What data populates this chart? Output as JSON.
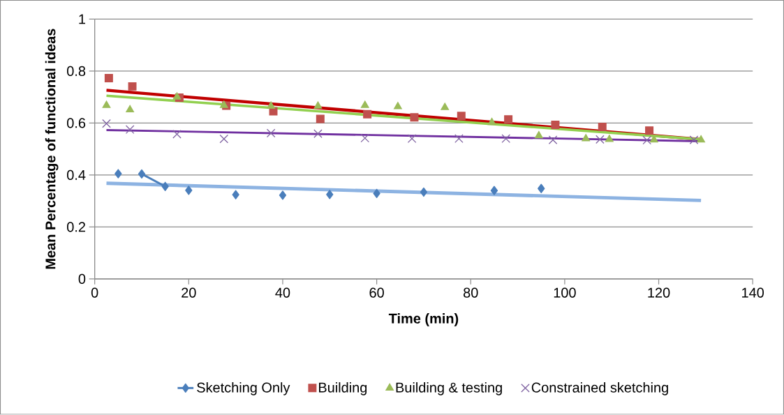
{
  "chart_data": {
    "type": "scatter",
    "xlabel": "Time (min)",
    "ylabel": "Mean Percentage of functional ideas",
    "xlim": [
      0,
      140
    ],
    "xticks": [
      0,
      20,
      40,
      60,
      80,
      100,
      120,
      140
    ],
    "ylim": [
      0,
      1
    ],
    "yticks": [
      0,
      0.2,
      0.4,
      0.6,
      0.8,
      1
    ],
    "grid": "y",
    "legend": "bottom",
    "series": [
      {
        "name": "Sketching Only",
        "type": "line",
        "color": "#4a7ebb",
        "marker": "diamond",
        "x": [
          5,
          7.5,
          10,
          15,
          17.5,
          20,
          25,
          30,
          35,
          40,
          45,
          50,
          55,
          60,
          65,
          70,
          77.5,
          85,
          90,
          95
        ],
        "values": [
          0.405,
          null,
          0.404,
          0.356,
          null,
          0.341,
          null,
          0.324,
          null,
          0.322,
          null,
          0.325,
          null,
          0.329,
          null,
          0.334,
          null,
          0.34,
          null,
          0.348
        ]
      },
      {
        "name": "Building",
        "color": "#c0504d",
        "marker": "square",
        "x": [
          3,
          8,
          18,
          28,
          38,
          48,
          58,
          68,
          78,
          88,
          98,
          108,
          118
        ],
        "values": [
          0.773,
          0.741,
          0.698,
          0.667,
          0.645,
          0.616,
          0.634,
          0.622,
          0.627,
          0.614,
          0.593,
          0.585,
          0.571
        ]
      },
      {
        "name": "Building & testing",
        "color": "#9bbb59",
        "marker": "triangle",
        "x": [
          2.5,
          7.5,
          17.5,
          27.5,
          37.5,
          47.5,
          57.5,
          64.5,
          74.5,
          84.5,
          94.5,
          104.5,
          109.5,
          119,
          129
        ],
        "values": [
          0.668,
          0.651,
          0.7,
          0.668,
          0.665,
          0.665,
          0.668,
          0.663,
          0.66,
          0.602,
          0.551,
          0.54,
          0.537,
          0.535,
          0.535
        ]
      },
      {
        "name": "Constrained sketching",
        "color": "#8064a2",
        "marker": "cross",
        "x": [
          2.5,
          7.5,
          17.5,
          27.5,
          37.5,
          47.5,
          57.5,
          67.5,
          77.5,
          87.5,
          97.5,
          107.5,
          117.5,
          127.5
        ],
        "values": [
          0.598,
          0.575,
          0.557,
          0.539,
          0.561,
          0.559,
          0.542,
          0.54,
          0.54,
          0.54,
          0.535,
          0.537,
          0.534,
          0.535
        ]
      },
      {
        "type": "line",
        "color": "#8db3e2",
        "marker": "none",
        "x": [
          2.5,
          129
        ],
        "values": [
          0.368,
          0.302
        ]
      },
      {
        "type": "line",
        "color": "#c00000",
        "marker": "none",
        "x": [
          2.5,
          129
        ],
        "values": [
          0.726,
          0.537
        ]
      },
      {
        "type": "line",
        "color": "#92d050",
        "marker": "none",
        "x": [
          2.5,
          129
        ],
        "values": [
          0.705,
          0.537
        ]
      },
      {
        "type": "line",
        "color": "#7030a0",
        "marker": "none",
        "x": [
          2.5,
          129
        ],
        "values": [
          0.573,
          0.53
        ]
      }
    ]
  }
}
